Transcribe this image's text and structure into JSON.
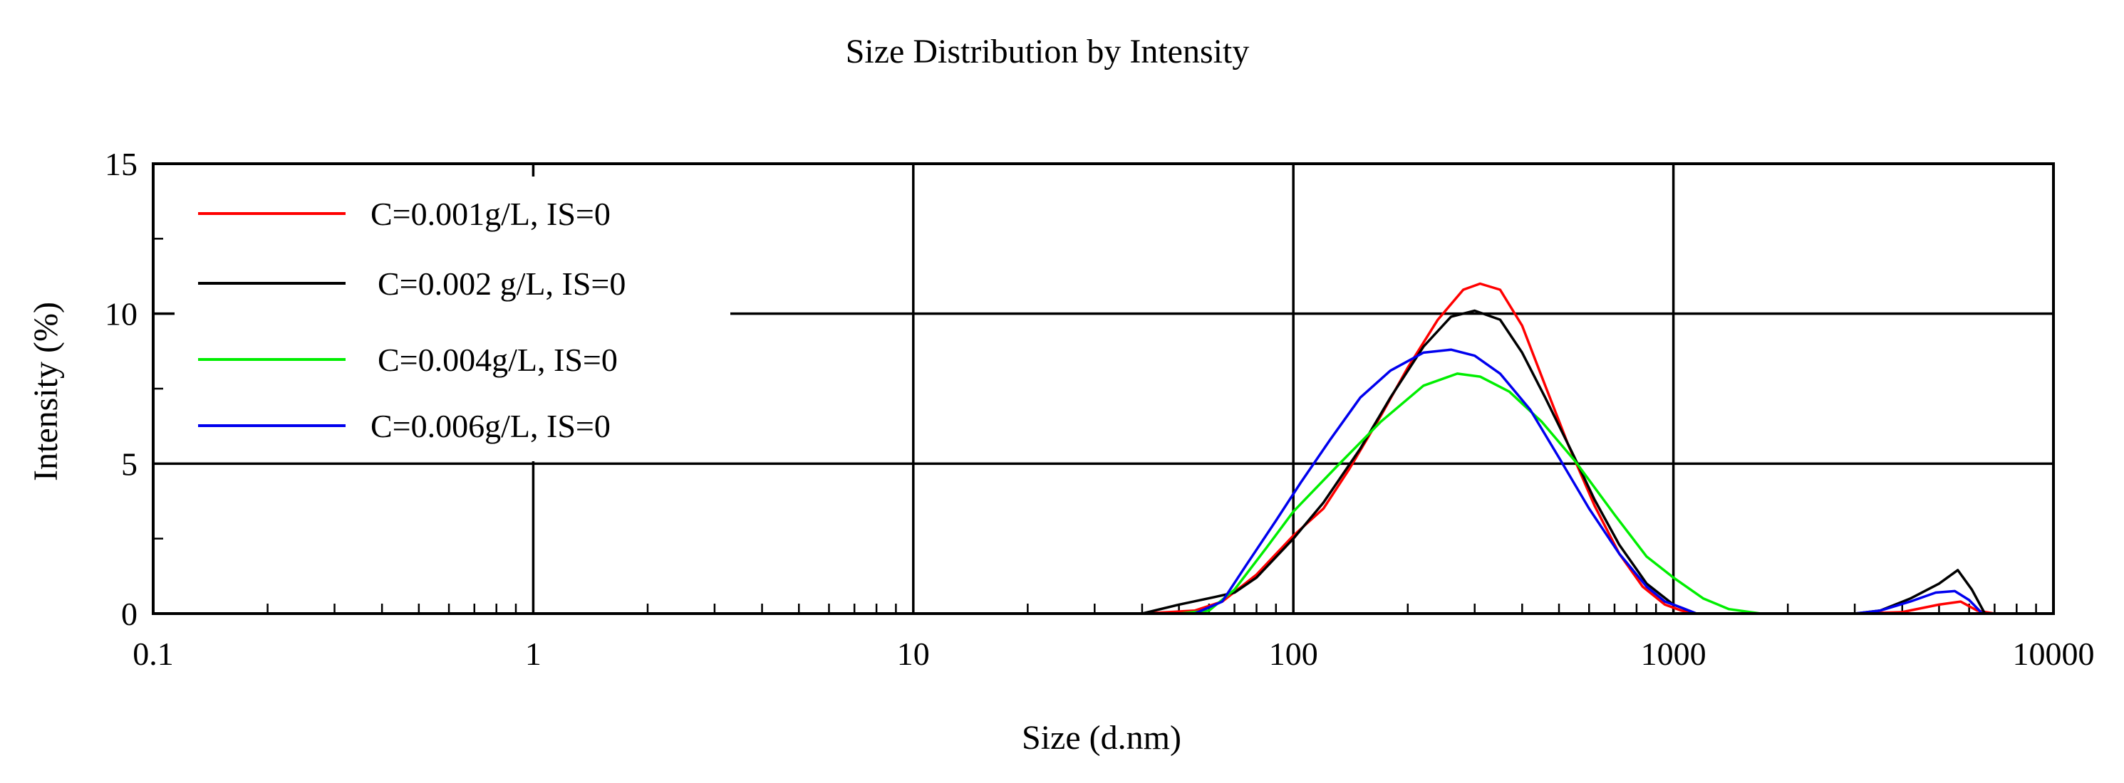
{
  "chart_data": {
    "type": "line",
    "title": "Size Distribution by Intensity",
    "xlabel": "Size (d.nm)",
    "ylabel": "Intensity (%)",
    "xscale": "log",
    "xlim": [
      0.1,
      10000
    ],
    "ylim": [
      0,
      15
    ],
    "grid": true,
    "legend_position": "top-left",
    "x_ticks": [
      {
        "value": 0.1,
        "label": "0.1"
      },
      {
        "value": 1,
        "label": "1"
      },
      {
        "value": 10,
        "label": "10"
      },
      {
        "value": 100,
        "label": "100"
      },
      {
        "value": 1000,
        "label": "1000"
      },
      {
        "value": 10000,
        "label": "10000"
      }
    ],
    "y_ticks": [
      {
        "value": 0,
        "label": "0"
      },
      {
        "value": 5,
        "label": "5"
      },
      {
        "value": 10,
        "label": "10"
      },
      {
        "value": 15,
        "label": "15"
      }
    ],
    "series": [
      {
        "name": "C=0.001g/L, IS=0",
        "color": "#ff0000",
        "points": [
          [
            40,
            0
          ],
          [
            55,
            0.1
          ],
          [
            65,
            0.4
          ],
          [
            80,
            1.3
          ],
          [
            100,
            2.6
          ],
          [
            120,
            3.5
          ],
          [
            140,
            4.8
          ],
          [
            170,
            6.6
          ],
          [
            200,
            8.2
          ],
          [
            240,
            9.8
          ],
          [
            280,
            10.8
          ],
          [
            310,
            11.0
          ],
          [
            350,
            10.8
          ],
          [
            400,
            9.6
          ],
          [
            460,
            7.6
          ],
          [
            530,
            5.6
          ],
          [
            620,
            3.6
          ],
          [
            720,
            2.0
          ],
          [
            830,
            0.9
          ],
          [
            950,
            0.3
          ],
          [
            1050,
            0.1
          ],
          [
            1150,
            0
          ],
          [
            3000,
            0
          ],
          [
            4000,
            0.05
          ],
          [
            5000,
            0.3
          ],
          [
            5700,
            0.4
          ],
          [
            6300,
            0.1
          ],
          [
            7000,
            0
          ]
        ]
      },
      {
        "name": "C=0.002 g/L, IS=0",
        "color": "#000000",
        "points": [
          [
            40,
            0
          ],
          [
            50,
            0.3
          ],
          [
            62,
            0.55
          ],
          [
            70,
            0.7
          ],
          [
            80,
            1.2
          ],
          [
            100,
            2.5
          ],
          [
            120,
            3.7
          ],
          [
            150,
            5.5
          ],
          [
            180,
            7.2
          ],
          [
            220,
            8.9
          ],
          [
            260,
            9.9
          ],
          [
            300,
            10.1
          ],
          [
            350,
            9.8
          ],
          [
            400,
            8.7
          ],
          [
            460,
            7.2
          ],
          [
            540,
            5.4
          ],
          [
            620,
            3.8
          ],
          [
            720,
            2.3
          ],
          [
            850,
            1.0
          ],
          [
            1000,
            0.3
          ],
          [
            1150,
            0
          ],
          [
            3000,
            0
          ],
          [
            3500,
            0.1
          ],
          [
            4200,
            0.5
          ],
          [
            5000,
            1.0
          ],
          [
            5600,
            1.45
          ],
          [
            6100,
            0.8
          ],
          [
            6600,
            0
          ]
        ]
      },
      {
        "name": "C=0.004g/L, IS=0",
        "color": "#00ee00",
        "points": [
          [
            50,
            0
          ],
          [
            60,
            0.1
          ],
          [
            70,
            0.8
          ],
          [
            85,
            2.2
          ],
          [
            100,
            3.4
          ],
          [
            130,
            4.9
          ],
          [
            170,
            6.4
          ],
          [
            220,
            7.6
          ],
          [
            270,
            8.0
          ],
          [
            310,
            7.9
          ],
          [
            370,
            7.4
          ],
          [
            450,
            6.4
          ],
          [
            550,
            5.1
          ],
          [
            700,
            3.3
          ],
          [
            850,
            1.9
          ],
          [
            1000,
            1.2
          ],
          [
            1200,
            0.5
          ],
          [
            1400,
            0.15
          ],
          [
            1700,
            0
          ],
          [
            3000,
            0
          ],
          [
            6000,
            0
          ]
        ]
      },
      {
        "name": "C=0.006g/L, IS=0",
        "color": "#0000ee",
        "points": [
          [
            40,
            0
          ],
          [
            55,
            0
          ],
          [
            65,
            0.4
          ],
          [
            75,
            1.6
          ],
          [
            90,
            3.1
          ],
          [
            105,
            4.4
          ],
          [
            125,
            5.8
          ],
          [
            150,
            7.2
          ],
          [
            180,
            8.1
          ],
          [
            220,
            8.7
          ],
          [
            260,
            8.8
          ],
          [
            300,
            8.6
          ],
          [
            350,
            8.0
          ],
          [
            420,
            6.8
          ],
          [
            500,
            5.2
          ],
          [
            600,
            3.5
          ],
          [
            720,
            2.0
          ],
          [
            850,
            0.9
          ],
          [
            950,
            0.4
          ],
          [
            1050,
            0.2
          ],
          [
            1150,
            0
          ],
          [
            3000,
            0
          ],
          [
            3500,
            0.1
          ],
          [
            4200,
            0.4
          ],
          [
            4900,
            0.7
          ],
          [
            5500,
            0.75
          ],
          [
            6000,
            0.45
          ],
          [
            6500,
            0
          ]
        ]
      }
    ]
  }
}
